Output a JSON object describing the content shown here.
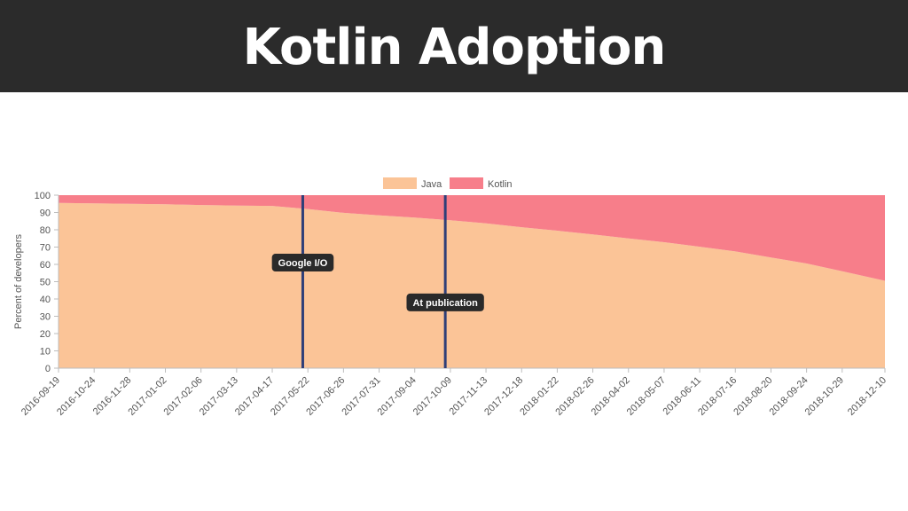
{
  "slide": {
    "title": "Kotlin Adoption"
  },
  "chart_data": {
    "type": "area",
    "stacked": true,
    "title": "",
    "xlabel": "",
    "ylabel": "Percent of developers",
    "ylim": [
      0,
      100
    ],
    "yticks": [
      0,
      10,
      20,
      30,
      40,
      50,
      60,
      70,
      80,
      90,
      100
    ],
    "grid": false,
    "legend_position": "top-center",
    "x": [
      "2016-09-19",
      "2016-10-24",
      "2016-11-28",
      "2017-01-02",
      "2017-02-06",
      "2017-03-13",
      "2017-04-17",
      "2017-05-22",
      "2017-06-26",
      "2017-07-31",
      "2017-09-04",
      "2017-10-09",
      "2017-11-13",
      "2017-12-18",
      "2018-01-22",
      "2018-02-26",
      "2018-04-02",
      "2018-05-07",
      "2018-06-11",
      "2018-07-16",
      "2018-08-20",
      "2018-09-24",
      "2018-10-29",
      "2018-12-10"
    ],
    "series": [
      {
        "name": "Java",
        "color": "#fbc497",
        "values": [
          95.5,
          95.3,
          95.0,
          94.7,
          94.3,
          94.0,
          93.8,
          92.0,
          89.8,
          88.3,
          87.0,
          85.5,
          83.7,
          81.5,
          79.5,
          77.3,
          75.0,
          72.8,
          70.2,
          67.5,
          64.0,
          60.5,
          56.0,
          50.5
        ]
      },
      {
        "name": "Kotlin",
        "color": "#f77e8a",
        "values": [
          4.5,
          4.7,
          5.0,
          5.3,
          5.7,
          6.0,
          6.2,
          8.0,
          10.2,
          11.7,
          13.0,
          14.5,
          16.3,
          18.5,
          20.5,
          22.7,
          25.0,
          27.2,
          29.8,
          32.5,
          36.0,
          39.5,
          44.0,
          49.5
        ]
      }
    ],
    "annotations": [
      {
        "label": "Google I/O",
        "x": "2017-05-17",
        "label_y": 61,
        "color": "#2f3f78"
      },
      {
        "label": "At publication",
        "x": "2017-10-04",
        "label_y": 38,
        "color": "#2f3f78"
      }
    ]
  }
}
